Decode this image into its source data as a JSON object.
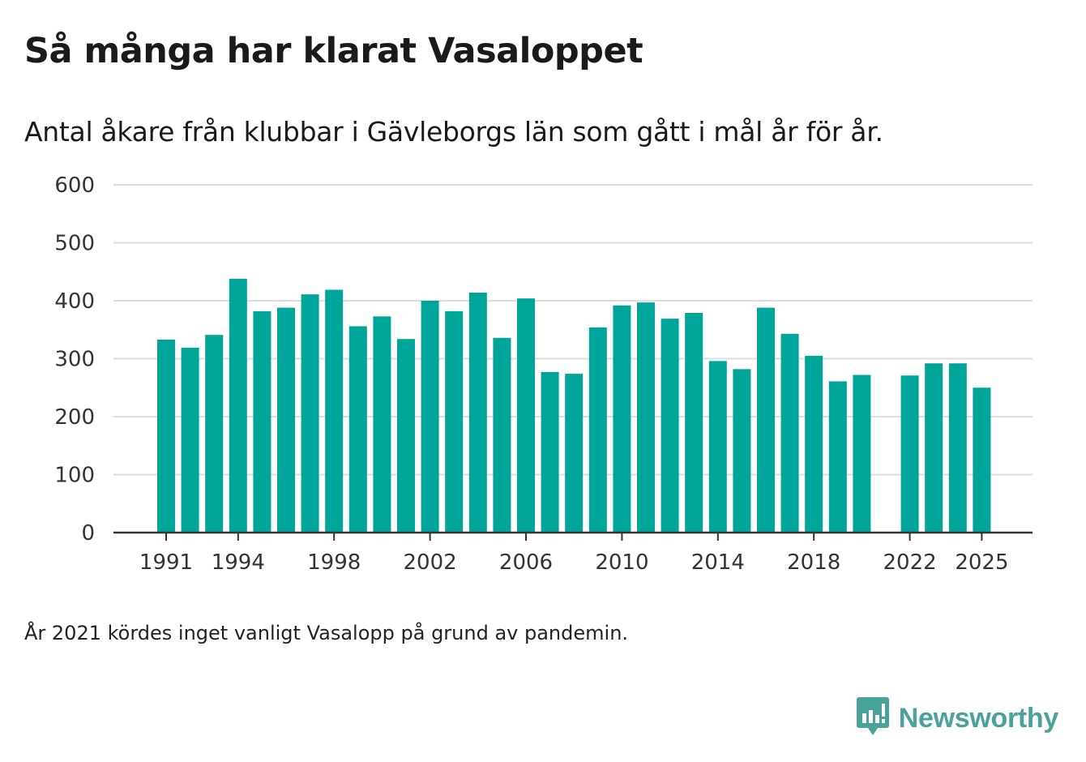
{
  "title": "Så många har klarat Vasaloppet",
  "subtitle": "Antal åkare från klubbar i Gävleborgs län som gått i mål år för år.",
  "note": "År 2021 kördes inget vanligt Vasalopp på grund av pandemin.",
  "brand": {
    "name": "Newsworthy",
    "color": "#4aa39a"
  },
  "colors": {
    "bar": "#00a59a",
    "grid": "#dddddd",
    "axis": "#333333"
  },
  "chart_data": {
    "type": "bar",
    "title": "Så många har klarat Vasaloppet",
    "subtitle": "Antal åkare från klubbar i Gävleborgs län som gått i mål år för år.",
    "xlabel": "",
    "ylabel": "",
    "ylim": [
      0,
      600
    ],
    "yticks": [
      0,
      100,
      200,
      300,
      400,
      500,
      600
    ],
    "xticks": [
      1991,
      1994,
      1998,
      2002,
      2006,
      2010,
      2014,
      2018,
      2022,
      2025
    ],
    "grid": true,
    "categories": [
      1991,
      1992,
      1993,
      1994,
      1995,
      1996,
      1997,
      1998,
      1999,
      2000,
      2001,
      2002,
      2003,
      2004,
      2005,
      2006,
      2007,
      2008,
      2009,
      2010,
      2011,
      2012,
      2013,
      2014,
      2015,
      2016,
      2017,
      2018,
      2019,
      2020,
      2021,
      2022,
      2023,
      2024,
      2025
    ],
    "values": [
      333,
      319,
      341,
      438,
      382,
      388,
      411,
      419,
      356,
      373,
      334,
      400,
      382,
      414,
      336,
      404,
      277,
      274,
      354,
      392,
      397,
      369,
      379,
      296,
      282,
      388,
      343,
      305,
      261,
      272,
      null,
      271,
      292,
      292,
      250
    ]
  }
}
